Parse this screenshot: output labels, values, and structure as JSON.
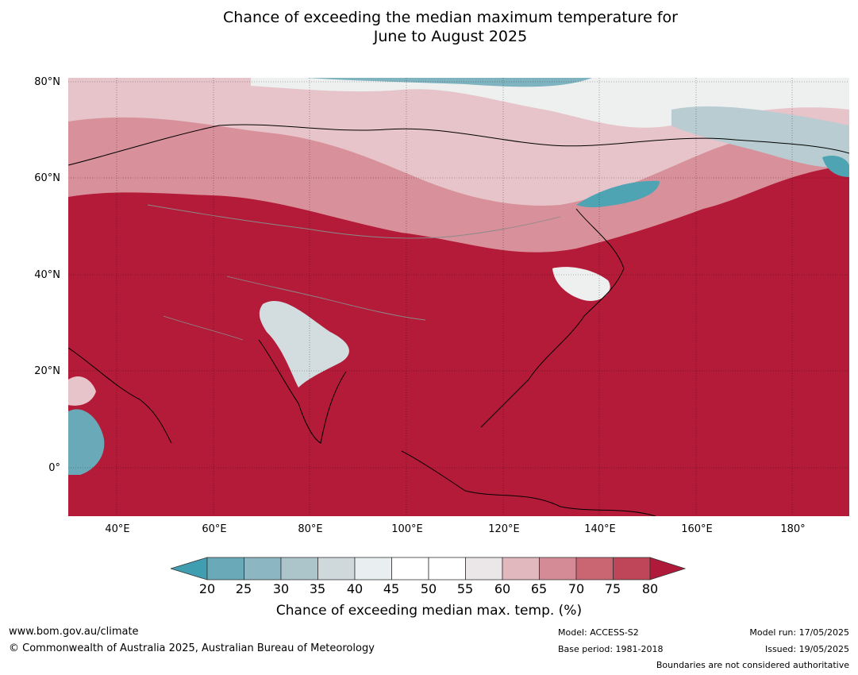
{
  "title": {
    "line1": "Chance of exceeding the median maximum temperature for",
    "line2": "June to August 2025"
  },
  "map": {
    "lat_labels": [
      "80°N",
      "60°N",
      "40°N",
      "20°N",
      "0°"
    ],
    "lon_labels": [
      "40°E",
      "60°E",
      "80°E",
      "100°E",
      "120°E",
      "140°E",
      "160°E",
      "180°"
    ],
    "lon_range": [
      30,
      191
    ],
    "lat_range": [
      -10,
      81
    ],
    "dominant_color": "#b31b38",
    "projection": "plate-carree"
  },
  "colorbar": {
    "ticks": [
      "20",
      "25",
      "30",
      "35",
      "40",
      "45",
      "50",
      "55",
      "60",
      "65",
      "70",
      "75",
      "80"
    ],
    "colors": [
      "#3f9fb0",
      "#6aaab8",
      "#8cb6c2",
      "#abc5cb",
      "#cfd9dc",
      "#e9eff0",
      "#ffffff",
      "#ffffff",
      "#ebe6e7",
      "#e0b8be",
      "#d58b95",
      "#c96672",
      "#bf4658",
      "#b01a3a"
    ],
    "label": "Chance of exceeding median max. temp. (%)"
  },
  "footer": {
    "url": "www.bom.gov.au/climate",
    "copyright": "© Commonwealth of Australia 2025, Australian Bureau of Meteorology",
    "model": "Model: ACCESS-S2",
    "base_period": "Base period: 1981-2018",
    "model_run": "Model run: 17/05/2025",
    "issued": "Issued: 19/05/2025",
    "disclaimer": "Boundaries are not considered authoritative"
  }
}
